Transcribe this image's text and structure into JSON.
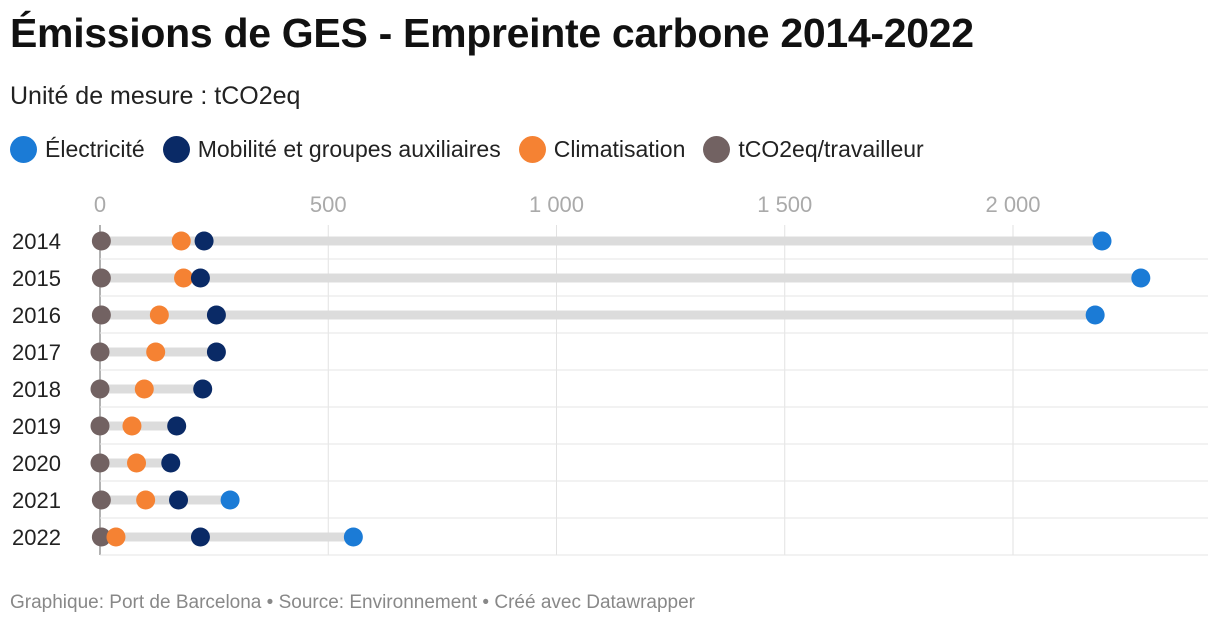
{
  "title": "Émissions de GES - Empreinte carbone 2014-2022",
  "subtitle": "Unité de mesure : tCO2eq",
  "footer": "Graphique: Port de Barcelona • Source: Environnement • Créé avec Datawrapper",
  "legend": [
    {
      "label": "Électricité",
      "color": "#1b7bd6"
    },
    {
      "label": "Mobilité et groupes auxiliaires",
      "color": "#0a2a66"
    },
    {
      "label": "Climatisation",
      "color": "#f58233"
    },
    {
      "label": "tCO2eq/travailleur",
      "color": "#726262"
    }
  ],
  "chart_data": {
    "type": "scatter",
    "orientation": "horizontal-dot-plot",
    "categories": [
      "2014",
      "2015",
      "2016",
      "2017",
      "2018",
      "2019",
      "2020",
      "2021",
      "2022"
    ],
    "xlim": [
      0,
      2400
    ],
    "xticks": [
      0,
      500,
      1000,
      1500,
      2000
    ],
    "xtick_labels": [
      "0",
      "500",
      "1 000",
      "1 500",
      "2 000"
    ],
    "grid": true,
    "legend_position": "top",
    "series": [
      {
        "name": "Électricité",
        "color": "#1b7bd6",
        "values": [
          2195,
          2280,
          2180,
          null,
          null,
          null,
          null,
          285,
          555
        ]
      },
      {
        "name": "Mobilité et groupes auxiliaires",
        "color": "#0a2a66",
        "values": [
          228,
          220,
          255,
          255,
          225,
          168,
          155,
          172,
          220
        ]
      },
      {
        "name": "Climatisation",
        "color": "#f58233",
        "values": [
          178,
          183,
          130,
          122,
          97,
          70,
          80,
          100,
          35
        ]
      },
      {
        "name": "tCO2eq/travailleur",
        "color": "#726262",
        "values": [
          3,
          3,
          3,
          0,
          0,
          0,
          0,
          3,
          3
        ]
      }
    ]
  }
}
